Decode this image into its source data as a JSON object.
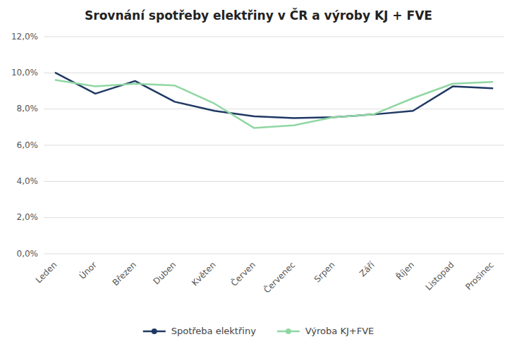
{
  "chart_data": {
    "type": "line",
    "title": "Srovnání spotřeby elektřiny v ČR a výroby KJ + FVE",
    "categories": [
      "Leden",
      "Únor",
      "Březen",
      "Duben",
      "Květen",
      "Červen",
      "Červenec",
      "Srpen",
      "Září",
      "Říjen",
      "Listopad",
      "Prosinec"
    ],
    "series": [
      {
        "name": "Spotřeba elektřiny",
        "color": "#1f3864",
        "values": [
          10.0,
          8.85,
          9.55,
          8.4,
          7.9,
          7.6,
          7.5,
          7.55,
          7.7,
          7.9,
          9.25,
          9.15
        ]
      },
      {
        "name": "Výroba KJ+FVE",
        "color": "#90d7a3",
        "values": [
          9.6,
          9.25,
          9.4,
          9.3,
          8.3,
          6.95,
          7.1,
          7.55,
          7.7,
          8.6,
          9.4,
          9.5
        ]
      }
    ],
    "ylim": [
      0,
      12
    ],
    "yticks": [
      {
        "value": 0,
        "label": "0,0%"
      },
      {
        "value": 2,
        "label": "2,0%"
      },
      {
        "value": 4,
        "label": "4,0%"
      },
      {
        "value": 6,
        "label": "6,0%"
      },
      {
        "value": 8,
        "label": "8,0%"
      },
      {
        "value": 10,
        "label": "10,0%"
      },
      {
        "value": 12,
        "label": "12,0%"
      }
    ],
    "grid": true,
    "legend": "bottom"
  }
}
